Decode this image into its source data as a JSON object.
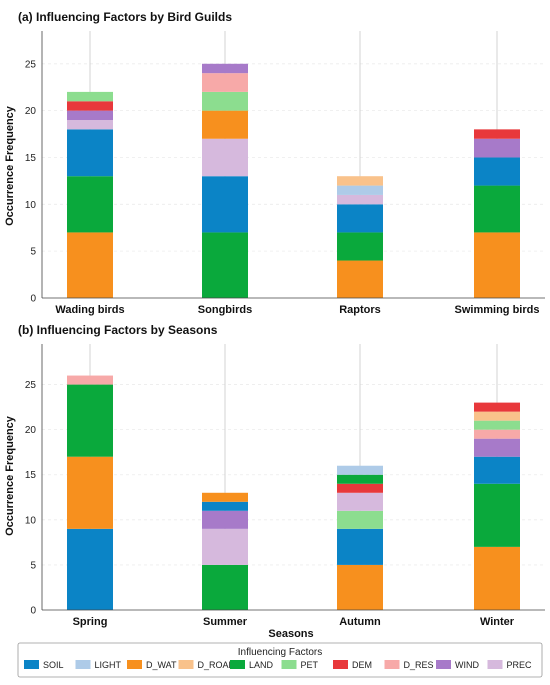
{
  "factor_colors": {
    "SOIL": "#0b84c6",
    "LIGHT": "#aecbe8",
    "D_WAT": "#f7901e",
    "D_ROAD": "#f9c28b",
    "LAND": "#0aa93c",
    "PET": "#8cdd8f",
    "DEM": "#e8383b",
    "D_RES": "#f7a9a8",
    "WIND": "#a77ac9",
    "PREC": "#d6b9dd"
  },
  "legend": {
    "title": "Influencing Factors",
    "items": [
      "SOIL",
      "LIGHT",
      "D_WAT",
      "D_ROAD",
      "LAND",
      "PET",
      "DEM",
      "D_RES",
      "WIND",
      "PREC"
    ]
  },
  "chart_data": [
    {
      "type": "bar",
      "stacked": true,
      "title": "(a) Influencing Factors by Bird Guilds",
      "xlabel": "",
      "ylabel": "Occurrence Frequency",
      "ylim": [
        0,
        28.5
      ],
      "yticks": [
        0,
        5,
        10,
        15,
        20,
        25
      ],
      "categories": [
        "Wading birds",
        "Songbirds",
        "Raptors",
        "Swimming birds"
      ],
      "stacks": [
        [
          {
            "factor": "D_WAT",
            "value": 7
          },
          {
            "factor": "LAND",
            "value": 6
          },
          {
            "factor": "SOIL",
            "value": 5
          },
          {
            "factor": "PREC",
            "value": 1
          },
          {
            "factor": "WIND",
            "value": 1
          },
          {
            "factor": "DEM",
            "value": 1
          },
          {
            "factor": "PET",
            "value": 1
          }
        ],
        [
          {
            "factor": "LAND",
            "value": 7
          },
          {
            "factor": "SOIL",
            "value": 6
          },
          {
            "factor": "PREC",
            "value": 4
          },
          {
            "factor": "D_WAT",
            "value": 3
          },
          {
            "factor": "PET",
            "value": 2
          },
          {
            "factor": "D_RES",
            "value": 2
          },
          {
            "factor": "WIND",
            "value": 1
          }
        ],
        [
          {
            "factor": "D_WAT",
            "value": 4
          },
          {
            "factor": "LAND",
            "value": 3
          },
          {
            "factor": "SOIL",
            "value": 3
          },
          {
            "factor": "PREC",
            "value": 1
          },
          {
            "factor": "LIGHT",
            "value": 1
          },
          {
            "factor": "D_ROAD",
            "value": 1
          }
        ],
        [
          {
            "factor": "D_WAT",
            "value": 7
          },
          {
            "factor": "LAND",
            "value": 5
          },
          {
            "factor": "SOIL",
            "value": 3
          },
          {
            "factor": "WIND",
            "value": 2
          },
          {
            "factor": "DEM",
            "value": 1
          }
        ]
      ],
      "grid": "horizontal",
      "legend": "bottom-center"
    },
    {
      "type": "bar",
      "stacked": true,
      "title": "(b) Influencing Factors by Seasons",
      "xlabel": "Seasons",
      "ylabel": "Occurrence Frequency",
      "ylim": [
        0,
        29.5
      ],
      "yticks": [
        0,
        5,
        10,
        15,
        20,
        25
      ],
      "categories": [
        "Spring",
        "Summer",
        "Autumn",
        "Winter"
      ],
      "stacks": [
        [
          {
            "factor": "SOIL",
            "value": 9
          },
          {
            "factor": "D_WAT",
            "value": 8
          },
          {
            "factor": "LAND",
            "value": 8
          },
          {
            "factor": "D_RES",
            "value": 1
          }
        ],
        [
          {
            "factor": "LAND",
            "value": 5
          },
          {
            "factor": "PREC",
            "value": 4
          },
          {
            "factor": "WIND",
            "value": 2
          },
          {
            "factor": "SOIL",
            "value": 1
          },
          {
            "factor": "D_WAT",
            "value": 1
          }
        ],
        [
          {
            "factor": "D_WAT",
            "value": 5
          },
          {
            "factor": "SOIL",
            "value": 4
          },
          {
            "factor": "PET",
            "value": 2
          },
          {
            "factor": "PREC",
            "value": 2
          },
          {
            "factor": "DEM",
            "value": 1
          },
          {
            "factor": "LAND",
            "value": 1
          },
          {
            "factor": "LIGHT",
            "value": 1
          }
        ],
        [
          {
            "factor": "D_WAT",
            "value": 7
          },
          {
            "factor": "LAND",
            "value": 7
          },
          {
            "factor": "SOIL",
            "value": 3
          },
          {
            "factor": "WIND",
            "value": 2
          },
          {
            "factor": "D_RES",
            "value": 1
          },
          {
            "factor": "PET",
            "value": 1
          },
          {
            "factor": "D_ROAD",
            "value": 1
          },
          {
            "factor": "DEM",
            "value": 1
          }
        ]
      ],
      "grid": "horizontal",
      "legend": "bottom-center"
    }
  ]
}
